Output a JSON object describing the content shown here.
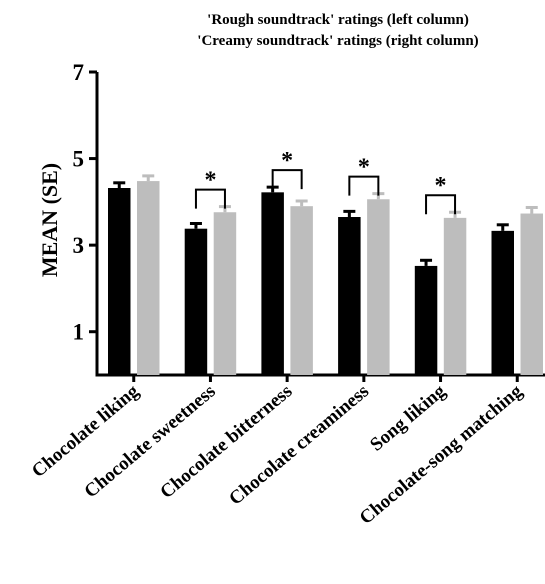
{
  "chart_data": {
    "type": "bar",
    "title_lines": [
      "'Rough soundtrack' ratings (left column)",
      "'Creamy soundtrack' ratings (right column)"
    ],
    "ylabel": "MEAN (SE)",
    "xlabel": "",
    "ylim": [
      0,
      7
    ],
    "yticks": [
      "1",
      "3",
      "5",
      "7"
    ],
    "categories": [
      "Chocolate liking",
      "Chocolate sweetness",
      "Chocolate bitterness",
      "Chocolate creaminess",
      "Song liking",
      "Chocolate-song matching"
    ],
    "series": [
      {
        "values": [
          4.32,
          3.38,
          4.22,
          3.65,
          2.52,
          3.33
        ],
        "errors": [
          0.12,
          0.12,
          0.12,
          0.13,
          0.13,
          0.14
        ],
        "color": "#000000"
      },
      {
        "values": [
          4.48,
          3.76,
          3.9,
          4.06,
          3.63,
          3.73
        ],
        "errors": [
          0.12,
          0.13,
          0.12,
          0.13,
          0.13,
          0.14
        ],
        "color": "#bdbdbd"
      }
    ],
    "significance": [
      {
        "category_index": 1,
        "label": "*"
      },
      {
        "category_index": 2,
        "label": "*"
      },
      {
        "category_index": 3,
        "label": "*"
      },
      {
        "category_index": 4,
        "label": "*"
      }
    ],
    "legend": "none",
    "grid": false
  }
}
